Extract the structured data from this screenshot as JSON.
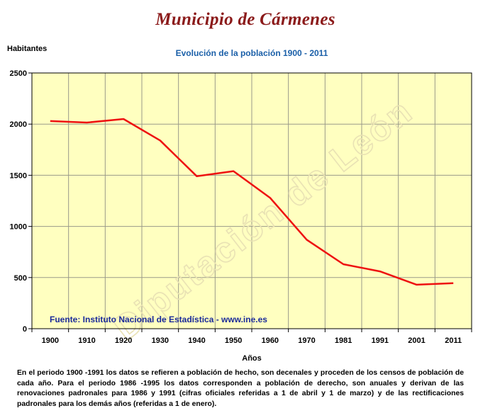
{
  "page_title": "Municipio de Cármenes",
  "footnote": "En el periodo 1900 -1991 los datos se refieren a población de hecho, son decenales y proceden de los censos de población de cada año. Para el periodo 1986 -1995 los datos corresponden a población de derecho, son anuales y derivan de las renovaciones padronales para 1986 y 1991 (cifras oficiales referidas a 1 de abril y 1 de marzo) y de las rectificaciones padronales para los demás años (referidas a 1 de enero).",
  "chart_data": {
    "type": "line",
    "title": "Evolución de la población 1900 - 2011",
    "ylabel": "Habitantes",
    "xlabel": "Años",
    "categories": [
      "1900",
      "1910",
      "1920",
      "1930",
      "1940",
      "1950",
      "1960",
      "1970",
      "1981",
      "1991",
      "2001",
      "2011"
    ],
    "series": [
      {
        "values": [
          2030,
          2015,
          2050,
          1840,
          1490,
          1540,
          1280,
          870,
          630,
          560,
          430,
          445
        ]
      }
    ],
    "y_ticks": [
      "0",
      "500",
      "1000",
      "1500",
      "2000",
      "2500"
    ],
    "ylim": [
      0,
      2500
    ],
    "grid": true,
    "source_note": "Fuente: Instituto Nacional de Estadística - www.ine.es",
    "watermark": "Diputación de León",
    "colors": {
      "line": "#ee1111",
      "plot_background": "#ffffc0",
      "title": "#1a5fa8",
      "source_note": "#1a2a9a",
      "page_title": "#8b1a1a"
    }
  }
}
